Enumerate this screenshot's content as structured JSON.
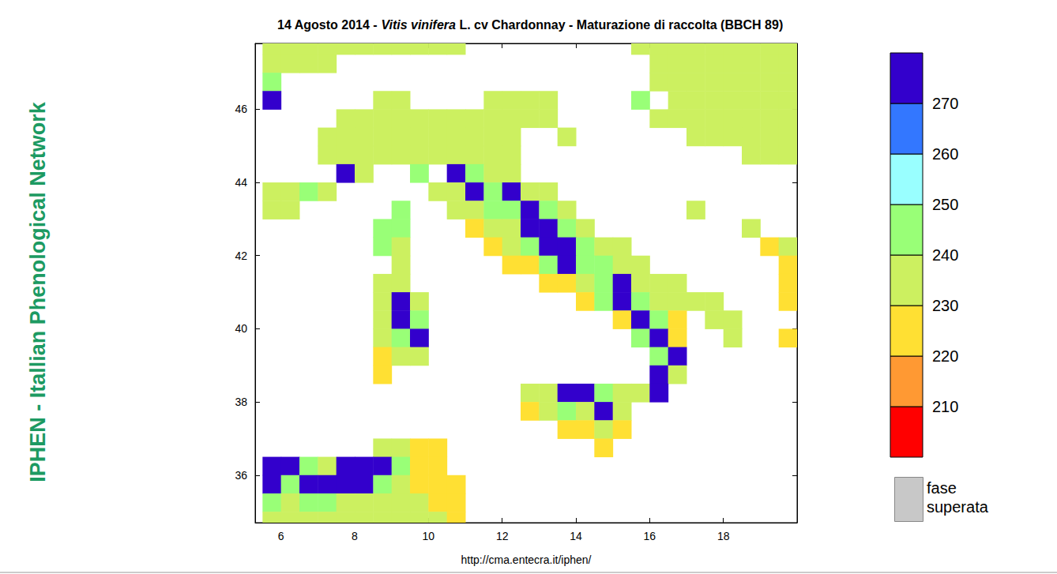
{
  "chart_data": {
    "type": "map",
    "title": "14 Agosto 2014 - Vitis vinifera L. cv Chardonnay - Maturazione di raccolta (BBCH 89)",
    "title_italic": "Vitis vinifera",
    "side_text": "IPHEN - Itallian Phenological Network",
    "source": "http://cma.entecra.it/iphen/",
    "xlim": [
      5.3,
      20
    ],
    "ylim": [
      34.7,
      47.8
    ],
    "xticks": [
      6,
      8,
      10,
      12,
      14,
      16,
      18
    ],
    "yticks": [
      36,
      38,
      40,
      42,
      44,
      46
    ],
    "colorbar": {
      "range": [
        200,
        280
      ],
      "ticks": [
        210,
        220,
        230,
        240,
        250,
        260,
        270
      ],
      "colors": [
        "#ff0000",
        "#ff9933",
        "#ffe033",
        "#ccf060",
        "#99ff77",
        "#99ffff",
        "#3377ff",
        "#3300cc"
      ]
    },
    "nodata_label": [
      "fase",
      "superata"
    ],
    "nodata_color": "#c8c8c8",
    "cells": [
      [
        5.75,
        47.75,
        235
      ],
      [
        6.25,
        47.75,
        235
      ],
      [
        6.75,
        47.75,
        235
      ],
      [
        7.25,
        47.75,
        235
      ],
      [
        7.75,
        47.75,
        235
      ],
      [
        8.25,
        47.75,
        235
      ],
      [
        8.75,
        47.75,
        235
      ],
      [
        9.25,
        47.75,
        235
      ],
      [
        9.75,
        47.75,
        235
      ],
      [
        10.25,
        47.75,
        235
      ],
      [
        10.75,
        47.75,
        235
      ],
      [
        15.75,
        47.75,
        235
      ],
      [
        16.25,
        47.75,
        235
      ],
      [
        16.75,
        47.75,
        235
      ],
      [
        17.25,
        47.75,
        235
      ],
      [
        17.75,
        47.75,
        235
      ],
      [
        18.25,
        47.75,
        235
      ],
      [
        18.75,
        47.75,
        235
      ],
      [
        19.25,
        47.75,
        235
      ],
      [
        19.75,
        47.75,
        235
      ],
      [
        5.75,
        47.25,
        235
      ],
      [
        6.25,
        47.25,
        235
      ],
      [
        6.75,
        47.25,
        235
      ],
      [
        7.25,
        47.25,
        235
      ],
      [
        16.25,
        47.25,
        235
      ],
      [
        16.75,
        47.25,
        235
      ],
      [
        17.25,
        47.25,
        235
      ],
      [
        17.75,
        47.25,
        235
      ],
      [
        18.25,
        47.25,
        235
      ],
      [
        18.75,
        47.25,
        235
      ],
      [
        19.25,
        47.25,
        235
      ],
      [
        19.75,
        47.25,
        235
      ],
      [
        5.75,
        46.75,
        245
      ],
      [
        16.25,
        46.75,
        235
      ],
      [
        16.75,
        46.75,
        235
      ],
      [
        17.25,
        46.75,
        235
      ],
      [
        17.75,
        46.75,
        235
      ],
      [
        18.25,
        46.75,
        235
      ],
      [
        18.75,
        46.75,
        235
      ],
      [
        19.25,
        46.75,
        235
      ],
      [
        19.75,
        46.75,
        235
      ],
      [
        5.75,
        46.25,
        275
      ],
      [
        8.75,
        46.25,
        235
      ],
      [
        9.25,
        46.25,
        235
      ],
      [
        11.75,
        46.25,
        235
      ],
      [
        12.25,
        46.25,
        235
      ],
      [
        12.75,
        46.25,
        235
      ],
      [
        13.25,
        46.25,
        235
      ],
      [
        15.75,
        46.25,
        245
      ],
      [
        16.75,
        46.25,
        235
      ],
      [
        17.25,
        46.25,
        235
      ],
      [
        17.75,
        46.25,
        235
      ],
      [
        18.25,
        46.25,
        235
      ],
      [
        18.75,
        46.25,
        235
      ],
      [
        19.25,
        46.25,
        235
      ],
      [
        19.75,
        46.25,
        235
      ],
      [
        7.75,
        45.75,
        235
      ],
      [
        8.25,
        45.75,
        235
      ],
      [
        8.75,
        45.75,
        235
      ],
      [
        9.25,
        45.75,
        235
      ],
      [
        9.75,
        45.75,
        235
      ],
      [
        10.25,
        45.75,
        235
      ],
      [
        10.75,
        45.75,
        235
      ],
      [
        11.25,
        45.75,
        235
      ],
      [
        11.75,
        45.75,
        235
      ],
      [
        12.25,
        45.75,
        235
      ],
      [
        12.75,
        45.75,
        235
      ],
      [
        13.25,
        45.75,
        235
      ],
      [
        16.25,
        45.75,
        235
      ],
      [
        16.75,
        45.75,
        235
      ],
      [
        17.25,
        45.75,
        235
      ],
      [
        17.75,
        45.75,
        235
      ],
      [
        18.25,
        45.75,
        235
      ],
      [
        18.75,
        45.75,
        235
      ],
      [
        19.25,
        45.75,
        235
      ],
      [
        19.75,
        45.75,
        235
      ],
      [
        7.25,
        45.25,
        235
      ],
      [
        7.75,
        45.25,
        235
      ],
      [
        8.25,
        45.25,
        235
      ],
      [
        8.75,
        45.25,
        235
      ],
      [
        9.25,
        45.25,
        235
      ],
      [
        9.75,
        45.25,
        235
      ],
      [
        10.25,
        45.25,
        235
      ],
      [
        10.75,
        45.25,
        235
      ],
      [
        11.25,
        45.25,
        235
      ],
      [
        11.75,
        45.25,
        235
      ],
      [
        12.25,
        45.25,
        235
      ],
      [
        13.75,
        45.25,
        235
      ],
      [
        17.25,
        45.25,
        235
      ],
      [
        17.75,
        45.25,
        235
      ],
      [
        18.25,
        45.25,
        235
      ],
      [
        18.75,
        45.25,
        235
      ],
      [
        19.25,
        45.25,
        235
      ],
      [
        19.75,
        45.25,
        235
      ],
      [
        7.25,
        44.75,
        235
      ],
      [
        7.75,
        44.75,
        235
      ],
      [
        8.25,
        44.75,
        235
      ],
      [
        8.75,
        44.75,
        235
      ],
      [
        9.25,
        44.75,
        235
      ],
      [
        9.75,
        44.75,
        235
      ],
      [
        10.25,
        44.75,
        235
      ],
      [
        10.75,
        44.75,
        235
      ],
      [
        11.25,
        44.75,
        235
      ],
      [
        11.75,
        44.75,
        235
      ],
      [
        12.25,
        44.75,
        235
      ],
      [
        18.75,
        44.75,
        235
      ],
      [
        19.25,
        44.75,
        235
      ],
      [
        19.75,
        44.75,
        235
      ],
      [
        7.75,
        44.25,
        275
      ],
      [
        8.25,
        44.25,
        235
      ],
      [
        9.75,
        44.25,
        245
      ],
      [
        10.75,
        44.25,
        275
      ],
      [
        11.25,
        44.25,
        245
      ],
      [
        11.75,
        44.25,
        235
      ],
      [
        12.25,
        44.25,
        235
      ],
      [
        5.75,
        43.75,
        235
      ],
      [
        6.25,
        43.75,
        235
      ],
      [
        6.75,
        43.75,
        245
      ],
      [
        7.25,
        43.75,
        235
      ],
      [
        10.25,
        43.75,
        235
      ],
      [
        10.75,
        43.75,
        235
      ],
      [
        11.25,
        43.75,
        275
      ],
      [
        11.75,
        43.75,
        245
      ],
      [
        12.25,
        43.75,
        275
      ],
      [
        12.75,
        43.75,
        235
      ],
      [
        13.25,
        43.75,
        235
      ],
      [
        5.75,
        43.25,
        235
      ],
      [
        6.25,
        43.25,
        235
      ],
      [
        9.25,
        43.25,
        245
      ],
      [
        10.75,
        43.25,
        235
      ],
      [
        11.25,
        43.25,
        235
      ],
      [
        11.75,
        43.25,
        245
      ],
      [
        12.25,
        43.25,
        245
      ],
      [
        12.75,
        43.25,
        275
      ],
      [
        13.25,
        43.25,
        245
      ],
      [
        13.75,
        43.25,
        235
      ],
      [
        17.25,
        43.25,
        235
      ],
      [
        8.75,
        42.75,
        245
      ],
      [
        9.25,
        42.75,
        245
      ],
      [
        11.25,
        42.75,
        225
      ],
      [
        11.75,
        42.75,
        235
      ],
      [
        12.25,
        42.75,
        235
      ],
      [
        12.75,
        42.75,
        275
      ],
      [
        13.25,
        42.75,
        275
      ],
      [
        13.75,
        42.75,
        245
      ],
      [
        14.25,
        42.75,
        235
      ],
      [
        18.75,
        42.75,
        235
      ],
      [
        8.75,
        42.25,
        245
      ],
      [
        9.25,
        42.25,
        235
      ],
      [
        11.75,
        42.25,
        225
      ],
      [
        12.25,
        42.25,
        235
      ],
      [
        12.75,
        42.25,
        245
      ],
      [
        13.25,
        42.25,
        275
      ],
      [
        13.75,
        42.25,
        275
      ],
      [
        14.25,
        42.25,
        245
      ],
      [
        14.75,
        42.25,
        235
      ],
      [
        15.25,
        42.25,
        235
      ],
      [
        19.25,
        42.25,
        225
      ],
      [
        19.75,
        42.25,
        235
      ],
      [
        9.25,
        41.75,
        235
      ],
      [
        12.25,
        41.75,
        225
      ],
      [
        12.75,
        41.75,
        225
      ],
      [
        13.25,
        41.75,
        245
      ],
      [
        13.75,
        41.75,
        275
      ],
      [
        14.25,
        41.75,
        245
      ],
      [
        14.75,
        41.75,
        245
      ],
      [
        15.25,
        41.75,
        235
      ],
      [
        15.75,
        41.75,
        235
      ],
      [
        19.75,
        41.75,
        225
      ],
      [
        8.75,
        41.25,
        235
      ],
      [
        9.25,
        41.25,
        235
      ],
      [
        13.25,
        41.25,
        225
      ],
      [
        13.75,
        41.25,
        225
      ],
      [
        14.25,
        41.25,
        235
      ],
      [
        14.75,
        41.25,
        245
      ],
      [
        15.25,
        41.25,
        275
      ],
      [
        15.75,
        41.25,
        235
      ],
      [
        16.25,
        41.25,
        235
      ],
      [
        16.75,
        41.25,
        235
      ],
      [
        19.75,
        41.25,
        225
      ],
      [
        8.75,
        40.75,
        235
      ],
      [
        9.25,
        40.75,
        275
      ],
      [
        9.75,
        40.75,
        235
      ],
      [
        14.25,
        40.75,
        225
      ],
      [
        14.75,
        40.75,
        245
      ],
      [
        15.25,
        40.75,
        275
      ],
      [
        15.75,
        40.75,
        245
      ],
      [
        16.25,
        40.75,
        235
      ],
      [
        16.75,
        40.75,
        235
      ],
      [
        17.25,
        40.75,
        235
      ],
      [
        17.75,
        40.75,
        235
      ],
      [
        19.75,
        40.75,
        225
      ],
      [
        8.75,
        40.25,
        235
      ],
      [
        9.25,
        40.25,
        275
      ],
      [
        9.75,
        40.25,
        245
      ],
      [
        15.25,
        40.25,
        225
      ],
      [
        15.75,
        40.25,
        275
      ],
      [
        16.25,
        40.25,
        245
      ],
      [
        16.75,
        40.25,
        225
      ],
      [
        17.75,
        40.25,
        235
      ],
      [
        18.25,
        40.25,
        235
      ],
      [
        8.75,
        39.75,
        235
      ],
      [
        9.25,
        39.75,
        245
      ],
      [
        9.75,
        39.75,
        275
      ],
      [
        15.75,
        39.75,
        245
      ],
      [
        16.25,
        39.75,
        275
      ],
      [
        16.75,
        39.75,
        225
      ],
      [
        18.25,
        39.75,
        235
      ],
      [
        19.75,
        39.75,
        225
      ],
      [
        8.75,
        39.25,
        225
      ],
      [
        9.25,
        39.25,
        235
      ],
      [
        9.75,
        39.25,
        235
      ],
      [
        16.25,
        39.25,
        245
      ],
      [
        16.75,
        39.25,
        275
      ],
      [
        8.75,
        38.75,
        225
      ],
      [
        16.25,
        38.75,
        275
      ],
      [
        16.75,
        38.75,
        235
      ],
      [
        12.75,
        38.25,
        235
      ],
      [
        13.25,
        38.25,
        235
      ],
      [
        13.75,
        38.25,
        275
      ],
      [
        14.25,
        38.25,
        275
      ],
      [
        14.75,
        38.25,
        245
      ],
      [
        15.25,
        38.25,
        235
      ],
      [
        15.75,
        38.25,
        235
      ],
      [
        16.25,
        38.25,
        275
      ],
      [
        12.75,
        37.75,
        225
      ],
      [
        13.25,
        37.75,
        235
      ],
      [
        13.75,
        37.75,
        245
      ],
      [
        14.25,
        37.75,
        235
      ],
      [
        14.75,
        37.75,
        275
      ],
      [
        15.25,
        37.75,
        235
      ],
      [
        13.75,
        37.25,
        225
      ],
      [
        14.25,
        37.25,
        225
      ],
      [
        14.75,
        37.25,
        235
      ],
      [
        15.25,
        37.25,
        225
      ],
      [
        8.75,
        36.75,
        235
      ],
      [
        9.25,
        36.75,
        235
      ],
      [
        9.75,
        36.75,
        225
      ],
      [
        10.25,
        36.75,
        225
      ],
      [
        14.75,
        36.75,
        225
      ],
      [
        5.75,
        36.25,
        275
      ],
      [
        6.25,
        36.25,
        275
      ],
      [
        6.75,
        36.25,
        245
      ],
      [
        7.25,
        36.25,
        235
      ],
      [
        7.75,
        36.25,
        275
      ],
      [
        8.25,
        36.25,
        275
      ],
      [
        8.75,
        36.25,
        275
      ],
      [
        9.25,
        36.25,
        245
      ],
      [
        9.75,
        36.25,
        225
      ],
      [
        10.25,
        36.25,
        225
      ],
      [
        5.75,
        35.75,
        275
      ],
      [
        6.25,
        35.75,
        245
      ],
      [
        6.75,
        35.75,
        275
      ],
      [
        7.25,
        35.75,
        275
      ],
      [
        7.75,
        35.75,
        275
      ],
      [
        8.25,
        35.75,
        275
      ],
      [
        8.75,
        35.75,
        245
      ],
      [
        9.25,
        35.75,
        235
      ],
      [
        9.75,
        35.75,
        225
      ],
      [
        10.25,
        35.75,
        225
      ],
      [
        10.75,
        35.75,
        225
      ],
      [
        5.75,
        35.25,
        245
      ],
      [
        6.25,
        35.25,
        235
      ],
      [
        6.75,
        35.25,
        245
      ],
      [
        7.25,
        35.25,
        245
      ],
      [
        7.75,
        35.25,
        235
      ],
      [
        8.25,
        35.25,
        235
      ],
      [
        8.75,
        35.25,
        235
      ],
      [
        9.25,
        35.25,
        235
      ],
      [
        9.75,
        35.25,
        235
      ],
      [
        10.25,
        35.25,
        225
      ],
      [
        10.75,
        35.25,
        225
      ],
      [
        5.75,
        34.75,
        235
      ],
      [
        6.25,
        34.75,
        235
      ],
      [
        6.75,
        34.75,
        235
      ],
      [
        7.25,
        34.75,
        235
      ],
      [
        7.75,
        34.75,
        235
      ],
      [
        8.25,
        34.75,
        235
      ],
      [
        8.75,
        34.75,
        235
      ],
      [
        9.25,
        34.75,
        235
      ],
      [
        9.75,
        34.75,
        235
      ],
      [
        10.25,
        34.75,
        235
      ],
      [
        10.75,
        34.75,
        225
      ]
    ]
  }
}
